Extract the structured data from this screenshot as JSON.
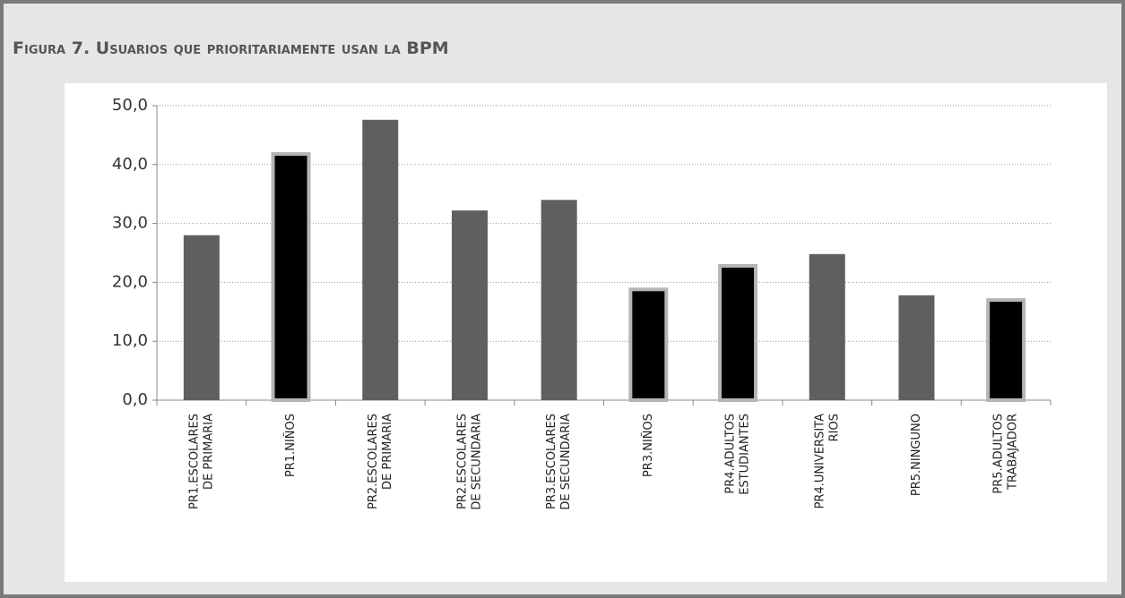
{
  "chart_data": {
    "type": "bar",
    "title": "Figura 7. Usuarios que prioritariamente usan la BPM",
    "categories": [
      [
        "PR1.ESCOLARES",
        "DE PRIMARIA"
      ],
      [
        "PR1.NIÑOS"
      ],
      [
        "PR2.ESCOLARES",
        "DE PRIMARIA"
      ],
      [
        "PR2.ESCOLARES",
        "DE SECUNDARIA"
      ],
      [
        "PR3.ESCOLARES",
        "DE SECUNDARIA"
      ],
      [
        "PR3.NIÑOS"
      ],
      [
        "PR4.ADULTOS",
        "ESTUDIANTES"
      ],
      [
        "PR4.UNIVERSITA",
        "RIOS"
      ],
      [
        "PR5.NINGUNO"
      ],
      [
        "PR5.ADULTOS",
        "TRABAJADOR"
      ]
    ],
    "values": [
      28.0,
      41.8,
      47.6,
      32.2,
      34.0,
      18.8,
      22.8,
      24.8,
      17.8,
      17.0
    ],
    "colors": [
      "#5f5f5f",
      "#000000",
      "#5f5f5f",
      "#5f5f5f",
      "#5f5f5f",
      "#000000",
      "#000000",
      "#5f5f5f",
      "#5f5f5f",
      "#000000"
    ],
    "ylim": [
      0,
      50
    ],
    "yticks": [
      {
        "value": 0,
        "label": "0,0"
      },
      {
        "value": 10,
        "label": "10,0"
      },
      {
        "value": 20,
        "label": "20,0"
      },
      {
        "value": 30,
        "label": "30,0"
      },
      {
        "value": 40,
        "label": "40,0"
      },
      {
        "value": 50,
        "label": "50,0"
      }
    ],
    "grid": true
  }
}
